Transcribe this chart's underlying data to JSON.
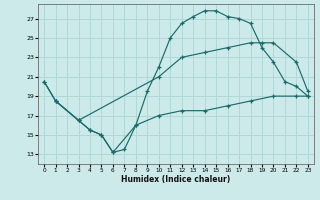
{
  "xlabel": "Humidex (Indice chaleur)",
  "bg_color": "#cdeaea",
  "grid_color": "#b0d8d8",
  "line_color": "#1a6b6b",
  "xlim": [
    -0.5,
    23.5
  ],
  "ylim": [
    12,
    28.5
  ],
  "xticks": [
    0,
    1,
    2,
    3,
    4,
    5,
    6,
    7,
    8,
    9,
    10,
    11,
    12,
    13,
    14,
    15,
    16,
    17,
    18,
    19,
    20,
    21,
    22,
    23
  ],
  "yticks": [
    13,
    15,
    17,
    19,
    21,
    23,
    25,
    27
  ],
  "line1_x": [
    0,
    1,
    3,
    4,
    5,
    6,
    7,
    8,
    9,
    10,
    11,
    12,
    13,
    14,
    15,
    16,
    17,
    18,
    19,
    20,
    21,
    22,
    23
  ],
  "line1_y": [
    20.5,
    18.5,
    16.5,
    15.5,
    15,
    13.2,
    13.5,
    16,
    19.5,
    22,
    25,
    26.5,
    27.2,
    27.8,
    27.8,
    27.2,
    27,
    26.5,
    24,
    22.5,
    20.5,
    20,
    19
  ],
  "line2_x": [
    0,
    1,
    3,
    10,
    12,
    14,
    16,
    18,
    19,
    20,
    22,
    23
  ],
  "line2_y": [
    20.5,
    18.5,
    16.5,
    21,
    23,
    23.5,
    24,
    24.5,
    24.5,
    24.5,
    22.5,
    19.5
  ],
  "line3_x": [
    1,
    3,
    4,
    5,
    6,
    8,
    10,
    12,
    14,
    16,
    18,
    20,
    22,
    23
  ],
  "line3_y": [
    18.5,
    16.5,
    15.5,
    15,
    13.2,
    16,
    17,
    17.5,
    17.5,
    18,
    18.5,
    19,
    19,
    19
  ]
}
